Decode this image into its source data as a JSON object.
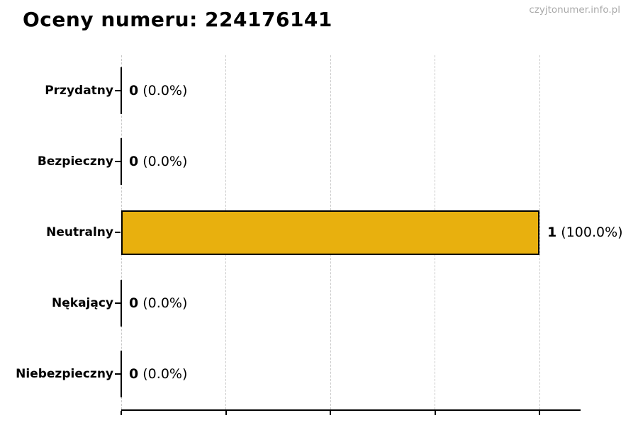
{
  "header": {
    "title": "Oceny numeru: 224176141",
    "watermark": "czyjtonumer.info.pl"
  },
  "chart_data": {
    "type": "bar",
    "orientation": "horizontal",
    "title": "Oceny numeru: 224176141",
    "categories": [
      "Przydatny",
      "Bezpieczny",
      "Neutralny",
      "Nękający",
      "Niebezpieczny"
    ],
    "values": [
      0,
      0,
      1,
      0,
      0
    ],
    "value_labels": [
      {
        "count": "0",
        "percent": "(0.0%)"
      },
      {
        "count": "0",
        "percent": "(0.0%)"
      },
      {
        "count": "1",
        "percent": "(100.0%)"
      },
      {
        "count": "0",
        "percent": "(0.0%)"
      },
      {
        "count": "0",
        "percent": "(0.0%)"
      }
    ],
    "xlim": [
      0,
      1
    ],
    "x_gridline_values": [
      0,
      0.25,
      0.5,
      0.75,
      1.0
    ],
    "x_tick_labels_visible": false,
    "grid": "vertical-dashed",
    "legend": "none",
    "colors": {
      "background": "#ffffff",
      "bar_fill": "#e8b00e",
      "bar_edge": "#000000",
      "gridline": "#c9c9c9",
      "axis": "#000000",
      "text": "#000000",
      "watermark": "#a9a9a9"
    }
  }
}
